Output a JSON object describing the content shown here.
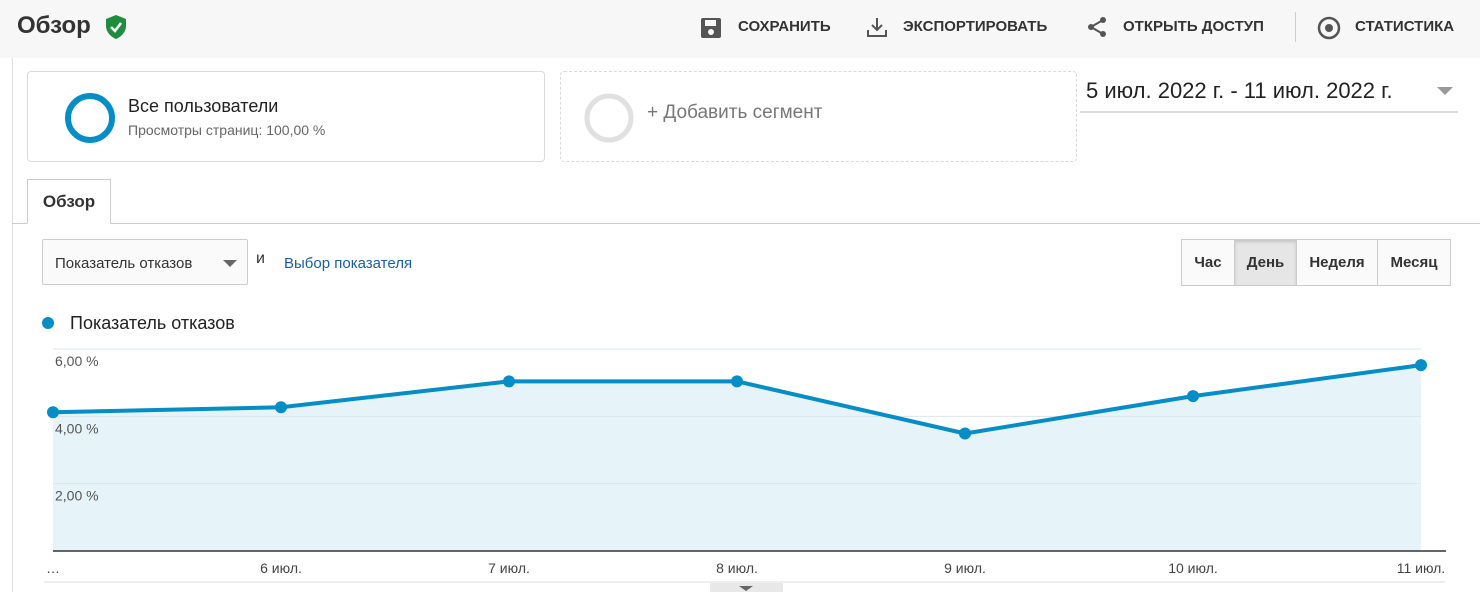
{
  "header": {
    "title": "Обзор",
    "actions": [
      "СОХРАНИТЬ",
      "ЭКСПОРТИРОВАТЬ",
      "ОТКРЫТЬ ДОСТУП",
      "СТАТИСТИКА"
    ]
  },
  "segments": [
    {
      "title": "Все пользователи",
      "subtitle": "Просмотры страниц: 100,00 %"
    },
    {
      "title": "+ Добавить сегмент"
    }
  ],
  "date_range": "5 июл. 2022 г. - 11 июл. 2022 г.",
  "tabs": [
    "Обзор"
  ],
  "metric_selector": {
    "selected": "Показатель отказов",
    "conjunction": "и",
    "link": "Выбор показателя"
  },
  "periods": [
    {
      "label": "Час",
      "active": false
    },
    {
      "label": "День",
      "active": true
    },
    {
      "label": "Неделя",
      "active": false
    },
    {
      "label": "Месяц",
      "active": false
    }
  ],
  "chart_data": {
    "type": "area",
    "categories": [
      "…",
      "6 июл.",
      "7 июл.",
      "8 июл.",
      "9 июл.",
      "10 июл.",
      "11 июл."
    ],
    "series": [
      {
        "name": "Показатель отказов",
        "color": "#058dc7",
        "values": [
          4.12,
          4.27,
          5.04,
          5.04,
          3.49,
          4.6,
          5.52
        ]
      }
    ],
    "ylim": [
      0,
      6
    ],
    "yticks": [
      {
        "value": 2,
        "label": "2,00 %"
      },
      {
        "value": 4,
        "label": "4,00 %"
      },
      {
        "value": 6,
        "label": "6,00 %"
      }
    ],
    "grid": true
  }
}
